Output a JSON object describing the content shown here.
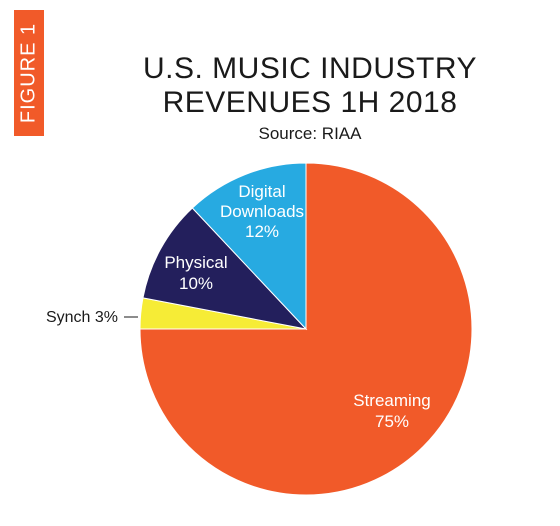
{
  "figure_label": "FIGURE 1",
  "title_line1": "U.S. MUSIC INDUSTRY",
  "title_line2": "REVENUES 1H 2018",
  "subtitle": "Source: RIAA",
  "chart_data": {
    "type": "pie",
    "title": "U.S. MUSIC INDUSTRY REVENUES 1H 2018",
    "subtitle": "Source: RIAA",
    "start_angle_deg": 0,
    "direction": "clockwise",
    "slices": [
      {
        "name": "Streaming",
        "value": 75,
        "label_lines": [
          "Streaming",
          "75%"
        ],
        "color": "#f15a29",
        "label_color": "#ffffff"
      },
      {
        "name": "Synch",
        "value": 3,
        "label_lines": [
          "Synch 3%"
        ],
        "color": "#f6ec36",
        "label_color": "#1a1a1a",
        "external_label": true
      },
      {
        "name": "Physical",
        "value": 10,
        "label_lines": [
          "Physical",
          "10%"
        ],
        "color": "#231f5c",
        "label_color": "#ffffff"
      },
      {
        "name": "Digital Downloads",
        "value": 12,
        "label_lines": [
          "Digital",
          "Downloads",
          "12%"
        ],
        "color": "#27aae1",
        "label_color": "#ffffff"
      }
    ]
  }
}
